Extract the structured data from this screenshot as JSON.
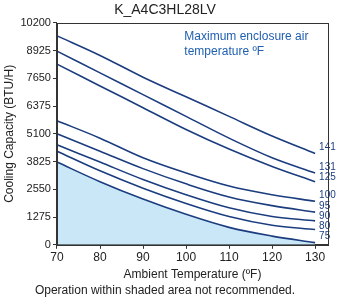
{
  "chart_data": {
    "type": "line",
    "title": "K_A4C3HL28LV",
    "x_label": "Ambient Temperature (ºF)",
    "y_label": "Cooling Capacity (BTU/H)",
    "annotation": "Maximum enclosure air temperature ºF",
    "footnote": "Operation within shaded area not recommended.",
    "x": [
      70,
      80,
      90,
      100,
      110,
      120,
      130
    ],
    "series": [
      {
        "name": "141",
        "color": "#1b3d7f",
        "values": [
          9600,
          8700,
          7700,
          6800,
          5900,
          5000,
          4200
        ]
      },
      {
        "name": "131",
        "color": "#1b3d7f",
        "values": [
          8900,
          7900,
          6900,
          5900,
          4900,
          4000,
          3300
        ]
      },
      {
        "name": "125",
        "color": "#1b3d7f",
        "values": [
          8300,
          7300,
          6300,
          5300,
          4400,
          3600,
          2900
        ]
      },
      {
        "name": "100",
        "color": "#1b3d7f",
        "values": [
          5700,
          4900,
          4000,
          3300,
          2700,
          2300,
          2000
        ]
      },
      {
        "name": "95",
        "color": "#1b3d7f",
        "values": [
          5100,
          4300,
          3500,
          2800,
          2200,
          1800,
          1500
        ]
      },
      {
        "name": "90",
        "color": "#1b3d7f",
        "values": [
          4600,
          3800,
          3000,
          2300,
          1700,
          1300,
          1100
        ]
      },
      {
        "name": "80",
        "color": "#1b3d7f",
        "values": [
          4300,
          3400,
          2600,
          1900,
          1300,
          900,
          700
        ]
      },
      {
        "name": "75",
        "color": "#1b3d7f",
        "type": "area",
        "values": [
          3800,
          2900,
          2100,
          1400,
          800,
          400,
          100
        ]
      }
    ],
    "xlim": [
      70,
      133
    ],
    "xticks": [
      70,
      80,
      90,
      100,
      110,
      120,
      130
    ],
    "ylim": [
      0,
      10200
    ],
    "yticks": [
      0,
      1275,
      2550,
      3825,
      5100,
      6375,
      7650,
      8925,
      10200
    ],
    "grid": false
  }
}
